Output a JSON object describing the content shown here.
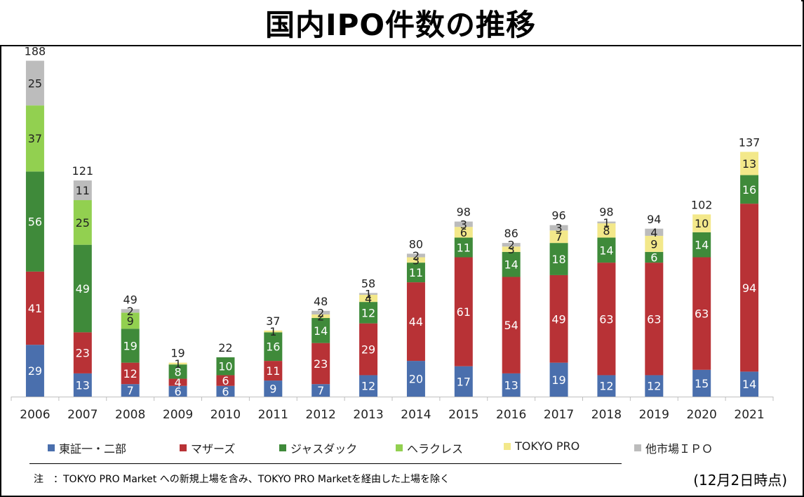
{
  "title": "国内IPO件数の推移",
  "legend": [
    {
      "label": "東証一・二部",
      "color": "#4a6fad"
    },
    {
      "label": "マザーズ",
      "color": "#b83236"
    },
    {
      "label": "ジャスダック",
      "color": "#3f8a3a"
    },
    {
      "label": "ヘラクレス",
      "color": "#92d050"
    },
    {
      "label": "TOKYO PRO",
      "color": "#f3e88a"
    },
    {
      "label": "他市場ＩＰＯ",
      "color": "#bcbcbc"
    }
  ],
  "note": "注　：TOKYO PRO Market への新規上場を含み、TOKYO PRO Marketを経由した上場を除く",
  "as_of": "(12月2日時点)",
  "chart_data": {
    "type": "bar",
    "stacked": true,
    "categories": [
      "2006",
      "2007",
      "2008",
      "2009",
      "2010",
      "2011",
      "2012",
      "2013",
      "2014",
      "2015",
      "2016",
      "2017",
      "2018",
      "2019",
      "2020",
      "2021"
    ],
    "series": [
      {
        "name": "東証一・二部",
        "color": "#4a6fad",
        "values": [
          29,
          13,
          7,
          6,
          6,
          9,
          7,
          12,
          20,
          17,
          13,
          19,
          12,
          12,
          15,
          14
        ]
      },
      {
        "name": "マザーズ",
        "color": "#b83236",
        "values": [
          41,
          23,
          12,
          4,
          6,
          11,
          23,
          29,
          44,
          61,
          54,
          49,
          63,
          63,
          63,
          94
        ]
      },
      {
        "name": "ジャスダック",
        "color": "#3f8a3a",
        "values": [
          56,
          49,
          19,
          8,
          10,
          16,
          14,
          12,
          11,
          11,
          14,
          18,
          14,
          6,
          14,
          16
        ]
      },
      {
        "name": "ヘラクレス",
        "color": "#92d050",
        "values": [
          37,
          25,
          9,
          0,
          0,
          0,
          0,
          0,
          0,
          0,
          0,
          0,
          0,
          0,
          0,
          0
        ]
      },
      {
        "name": "TOKYO PRO",
        "color": "#f3e88a",
        "values": [
          0,
          0,
          0,
          1,
          0,
          1,
          2,
          4,
          3,
          6,
          3,
          7,
          8,
          9,
          10,
          13
        ]
      },
      {
        "name": "他市場ＩＰＯ",
        "color": "#bcbcbc",
        "values": [
          25,
          11,
          2,
          0,
          0,
          0,
          2,
          1,
          2,
          3,
          2,
          3,
          1,
          4,
          0,
          0
        ]
      }
    ],
    "totals": [
      188,
      121,
      49,
      19,
      22,
      37,
      48,
      58,
      80,
      98,
      86,
      96,
      98,
      94,
      102,
      137
    ],
    "ylim": [
      0,
      188
    ],
    "grid": false,
    "legend_position": "bottom"
  }
}
